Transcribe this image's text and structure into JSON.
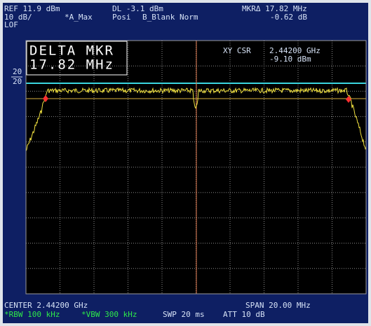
{
  "header": {
    "ref": "REF 11.9 dBm",
    "scale": "10 dB/",
    "trace_mode": "*A_Max",
    "dl": "DL -3.1 dBm",
    "detector": "Posi",
    "blank": "B_Blank Norm",
    "marker_delta": "MKRΔ 17.82 MHz",
    "marker_delta_level": "-0.62 dB"
  },
  "left": {
    "lof": "LOF",
    "level_top": "20",
    "level_bottom": "20"
  },
  "plot": {
    "delta_label": "DELTA MKR",
    "delta_value": "17.82 MHz",
    "cursor_label": "XY CSR",
    "cursor_freq": "2.44200 GHz",
    "cursor_level": "-9.10 dBm"
  },
  "footer": {
    "center": "CENTER 2.44200 GHz",
    "span": "SPAN 20.00 MHz",
    "rbw": "*RBW 100 kHz",
    "vbw": "*VBW 300 kHz",
    "sweep": "SWP 20 ms",
    "att": "ATT 10 dB"
  }
}
